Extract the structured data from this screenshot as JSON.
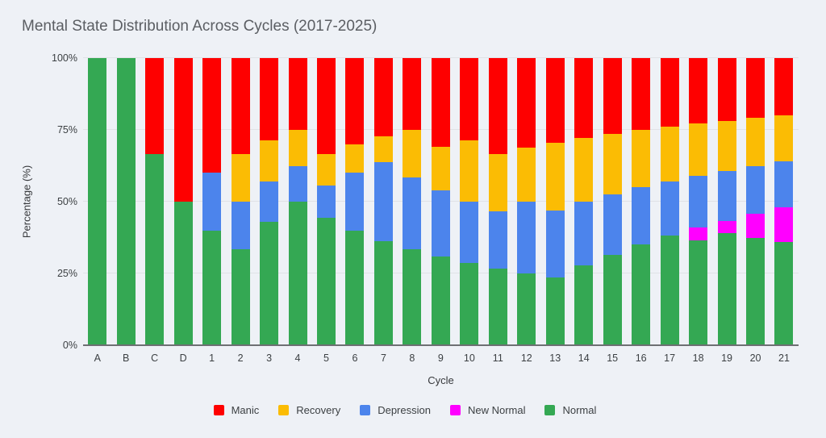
{
  "header": {
    "title": "Mental State Distribution Across Cycles (2017-2025)"
  },
  "colors": {
    "background": "#eef1f6",
    "gridline": "#e0e2e6",
    "axis_line": "#6e7073",
    "manic": "#fe0000",
    "recovery": "#fbbc04",
    "depression": "#4c84ec",
    "new_normal": "#ff00ff",
    "normal": "#34a853"
  },
  "chart_data": {
    "type": "bar",
    "stacked": true,
    "percent_stacked": true,
    "title": "Mental State Distribution Across Cycles (2017-2025)",
    "xlabel": "Cycle",
    "ylabel": "Percentage (%)",
    "ylim": [
      0,
      100
    ],
    "grid": true,
    "legend_position": "bottom",
    "y_ticks": [
      {
        "value": 0,
        "label": "0%"
      },
      {
        "value": 25,
        "label": "25%"
      },
      {
        "value": 50,
        "label": "50%"
      },
      {
        "value": 75,
        "label": "75%"
      },
      {
        "value": 100,
        "label": "100%"
      }
    ],
    "categories": [
      "A",
      "B",
      "C",
      "D",
      "1",
      "2",
      "3",
      "4",
      "5",
      "6",
      "7",
      "8",
      "9",
      "10",
      "11",
      "12",
      "13",
      "14",
      "15",
      "16",
      "17",
      "18",
      "19",
      "20",
      "21"
    ],
    "series": [
      {
        "name": "Manic",
        "color": "#fe0000",
        "values": [
          0,
          0,
          33.3,
          50,
          40,
          33.3,
          28.6,
          25,
          33.3,
          30,
          27.3,
          25,
          30.8,
          28.6,
          33.3,
          31.3,
          29.4,
          27.8,
          26.3,
          25,
          23.8,
          22.7,
          21.7,
          20.8,
          20
        ]
      },
      {
        "name": "Recovery",
        "color": "#fbbc04",
        "values": [
          0,
          0,
          0,
          0,
          0,
          16.7,
          14.3,
          12.5,
          11.1,
          10,
          9.1,
          16.7,
          15.4,
          21.4,
          20,
          18.8,
          23.5,
          22.2,
          21.1,
          20,
          19,
          18.2,
          17.4,
          16.7,
          16
        ]
      },
      {
        "name": "Depression",
        "color": "#4c84ec",
        "values": [
          0,
          0,
          0,
          0,
          20,
          16.7,
          14.3,
          12.5,
          11.1,
          20,
          27.3,
          25,
          23.1,
          21.4,
          20,
          25,
          23.5,
          22.2,
          21.1,
          20,
          19,
          18.2,
          17.4,
          16.7,
          16
        ]
      },
      {
        "name": "New Normal",
        "color": "#ff00ff",
        "values": [
          0,
          0,
          0,
          0,
          0,
          0,
          0,
          0,
          0,
          0,
          0,
          0,
          0,
          0,
          0,
          0,
          0,
          0,
          0,
          0,
          0,
          4.5,
          4.3,
          8.3,
          12
        ]
      },
      {
        "name": "Normal",
        "color": "#34a853",
        "values": [
          100,
          100,
          66.7,
          50,
          40,
          33.3,
          42.9,
          50,
          44.4,
          40,
          36.4,
          33.3,
          30.8,
          28.6,
          26.7,
          25,
          23.5,
          27.8,
          31.6,
          35,
          38.1,
          36.4,
          39.1,
          37.5,
          36
        ]
      }
    ]
  }
}
